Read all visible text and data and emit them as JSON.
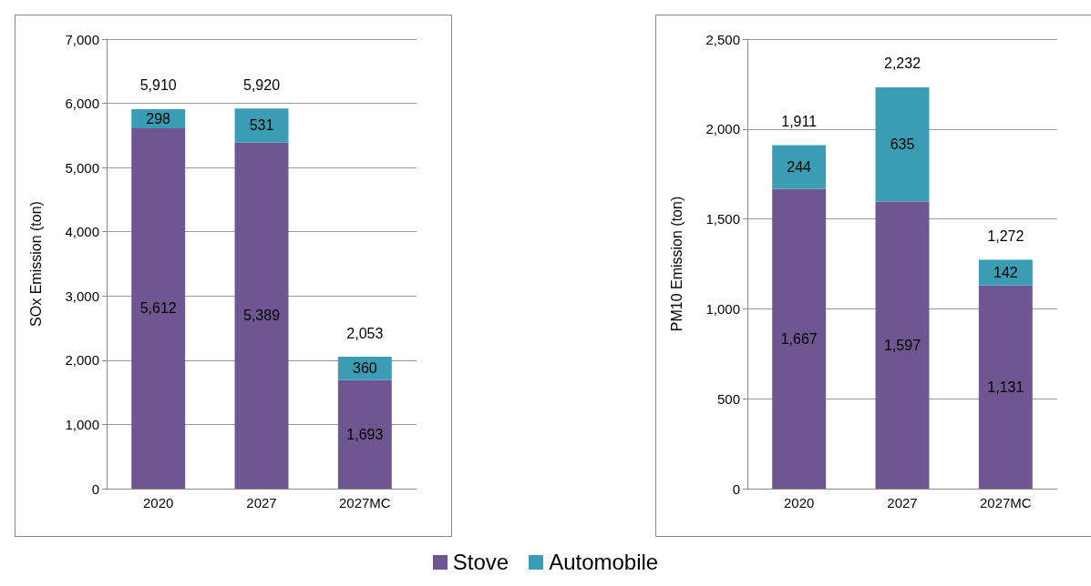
{
  "chart_data": [
    {
      "type": "bar",
      "stacked": true,
      "ylabel": "SOx Emission (ton)",
      "categories": [
        "2020",
        "2027",
        "2027MC"
      ],
      "series": [
        {
          "name": "Stove",
          "color": "#6e5690",
          "values": [
            5612,
            5389,
            1693
          ],
          "value_labels": [
            "5,612",
            "5,389",
            "1,693"
          ]
        },
        {
          "name": "Automobile",
          "color": "#3a9db3",
          "values": [
            298,
            531,
            360
          ],
          "value_labels": [
            "298",
            "531",
            "360"
          ]
        }
      ],
      "totals": [
        "5,910",
        "5,920",
        "2,053"
      ],
      "ylim": [
        0,
        7000
      ],
      "yticks": [
        {
          "value": 0,
          "label": "0"
        },
        {
          "value": 1000,
          "label": "1,000"
        },
        {
          "value": 2000,
          "label": "2,000"
        },
        {
          "value": 3000,
          "label": "3,000"
        },
        {
          "value": 4000,
          "label": "4,000"
        },
        {
          "value": 5000,
          "label": "5,000"
        },
        {
          "value": 6000,
          "label": "6,000"
        },
        {
          "value": 7000,
          "label": "7,000"
        }
      ],
      "grid": "y",
      "legend": "bottom"
    },
    {
      "type": "bar",
      "stacked": true,
      "ylabel": "PM10 Emission (ton)",
      "categories": [
        "2020",
        "2027",
        "2027MC"
      ],
      "series": [
        {
          "color": "#6e5690",
          "values": [
            1667,
            1597,
            1131
          ],
          "value_labels": [
            "1,667",
            "1,597",
            "1,131"
          ]
        },
        {
          "color": "#3a9db3",
          "values": [
            244,
            635,
            142
          ],
          "value_labels": [
            "244",
            "635",
            "142"
          ]
        }
      ],
      "totals": [
        "1,911",
        "2,232",
        "1,272"
      ],
      "ylim": [
        0,
        2500
      ],
      "yticks": [
        {
          "value": 0,
          "label": "0"
        },
        {
          "value": 500,
          "label": "500"
        },
        {
          "value": 1000,
          "label": "1,000"
        },
        {
          "value": 1500,
          "label": "1,500"
        },
        {
          "value": 2000,
          "label": "2,000"
        },
        {
          "value": 2500,
          "label": "2,500"
        }
      ],
      "grid": "y"
    }
  ]
}
